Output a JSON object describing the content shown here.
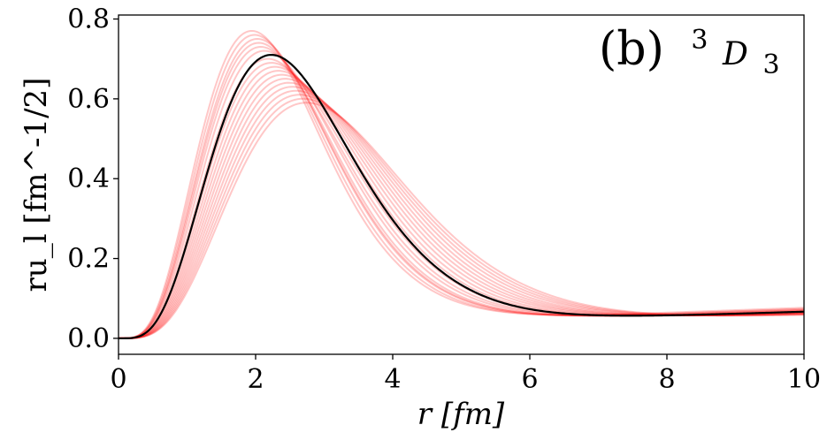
{
  "chart_data": {
    "type": "line",
    "annotation": {
      "panel": "(b)",
      "wave_main": "D",
      "wave_super": "3",
      "wave_sub": "3"
    },
    "xlabel": "r [fm]",
    "ylabel": "ru_l [fm^-1/2]",
    "x_ticks": [
      "0",
      "2",
      "4",
      "6",
      "8",
      "10"
    ],
    "y_ticks": [
      "0.0",
      "0.2",
      "0.4",
      "0.6",
      "0.8"
    ],
    "xlim": [
      0,
      10
    ],
    "ylim": [
      -0.04,
      0.81
    ],
    "grid": false,
    "legend": "none",
    "colors": {
      "central": "#000000",
      "samples": "#ff0000"
    },
    "central": {
      "peak_r": 2.2,
      "peak_value": 0.71,
      "tail_at_10": 0.068
    },
    "samples": [
      {
        "peak_r": 1.92,
        "peak_value": 0.77,
        "tail_at_10": 0.078
      },
      {
        "peak_r": 1.96,
        "peak_value": 0.76,
        "tail_at_10": 0.075
      },
      {
        "peak_r": 2.0,
        "peak_value": 0.75,
        "tail_at_10": 0.074
      },
      {
        "peak_r": 2.02,
        "peak_value": 0.74,
        "tail_at_10": 0.072
      },
      {
        "peak_r": 2.05,
        "peak_value": 0.73,
        "tail_at_10": 0.071
      },
      {
        "peak_r": 2.1,
        "peak_value": 0.72,
        "tail_at_10": 0.07
      },
      {
        "peak_r": 2.15,
        "peak_value": 0.7,
        "tail_at_10": 0.069
      },
      {
        "peak_r": 2.2,
        "peak_value": 0.69,
        "tail_at_10": 0.068
      },
      {
        "peak_r": 2.25,
        "peak_value": 0.68,
        "tail_at_10": 0.067
      },
      {
        "peak_r": 2.3,
        "peak_value": 0.67,
        "tail_at_10": 0.066
      },
      {
        "peak_r": 2.35,
        "peak_value": 0.66,
        "tail_at_10": 0.066
      },
      {
        "peak_r": 2.4,
        "peak_value": 0.65,
        "tail_at_10": 0.065
      },
      {
        "peak_r": 2.45,
        "peak_value": 0.64,
        "tail_at_10": 0.064
      },
      {
        "peak_r": 2.5,
        "peak_value": 0.63,
        "tail_at_10": 0.063
      },
      {
        "peak_r": 2.55,
        "peak_value": 0.62,
        "tail_at_10": 0.063
      },
      {
        "peak_r": 2.6,
        "peak_value": 0.61,
        "tail_at_10": 0.062
      },
      {
        "peak_r": 2.65,
        "peak_value": 0.6,
        "tail_at_10": 0.061
      },
      {
        "peak_r": 2.7,
        "peak_value": 0.59,
        "tail_at_10": 0.06
      }
    ]
  }
}
